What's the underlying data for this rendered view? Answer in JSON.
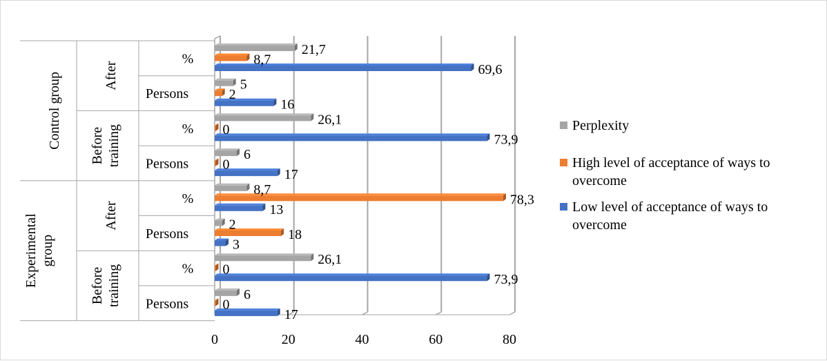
{
  "chart_data": {
    "type": "bar",
    "orientation": "horizontal",
    "style": "3d-clustered",
    "x_ticks": [
      "0",
      "20",
      "40",
      "60",
      "80"
    ],
    "xlim": [
      0,
      80
    ],
    "grid": "vertical major gridlines",
    "legend_position": "right",
    "groups": [
      {
        "label": "Experimental group",
        "subgroups": [
          {
            "label": "Before training",
            "rows": [
              "Persons",
              "%"
            ]
          },
          {
            "label": "After",
            "rows": [
              "Persons",
              "%"
            ]
          }
        ]
      },
      {
        "label": "Control group",
        "subgroups": [
          {
            "label": "Before training",
            "rows": [
              "Persons",
              "%"
            ]
          },
          {
            "label": "After",
            "rows": [
              "Persons",
              "%"
            ]
          }
        ]
      }
    ],
    "series": [
      {
        "name": "Low level of acceptance of ways to overcome",
        "color": "#4472c4",
        "values": [
          17,
          73.9,
          3,
          13,
          17,
          73.9,
          16,
          69.6
        ],
        "labels": [
          "17",
          "73,9",
          "3",
          "13",
          "17",
          "73,9",
          "16",
          "69,6"
        ]
      },
      {
        "name": "High level of acceptance of ways to overcome",
        "color": "#ed7d31",
        "values": [
          0,
          0,
          18,
          78.3,
          0,
          0,
          2,
          8.7
        ],
        "labels": [
          "0",
          "0",
          "18",
          "78,3",
          "0",
          "0",
          "2",
          "8,7"
        ]
      },
      {
        "name": "Perplexity",
        "color": "#a5a5a5",
        "values": [
          6,
          26.1,
          2,
          8.7,
          6,
          26.1,
          5,
          21.7
        ],
        "labels": [
          "6",
          "26,1",
          "2",
          "8,7",
          "6",
          "26,1",
          "5",
          "21,7"
        ]
      }
    ]
  }
}
